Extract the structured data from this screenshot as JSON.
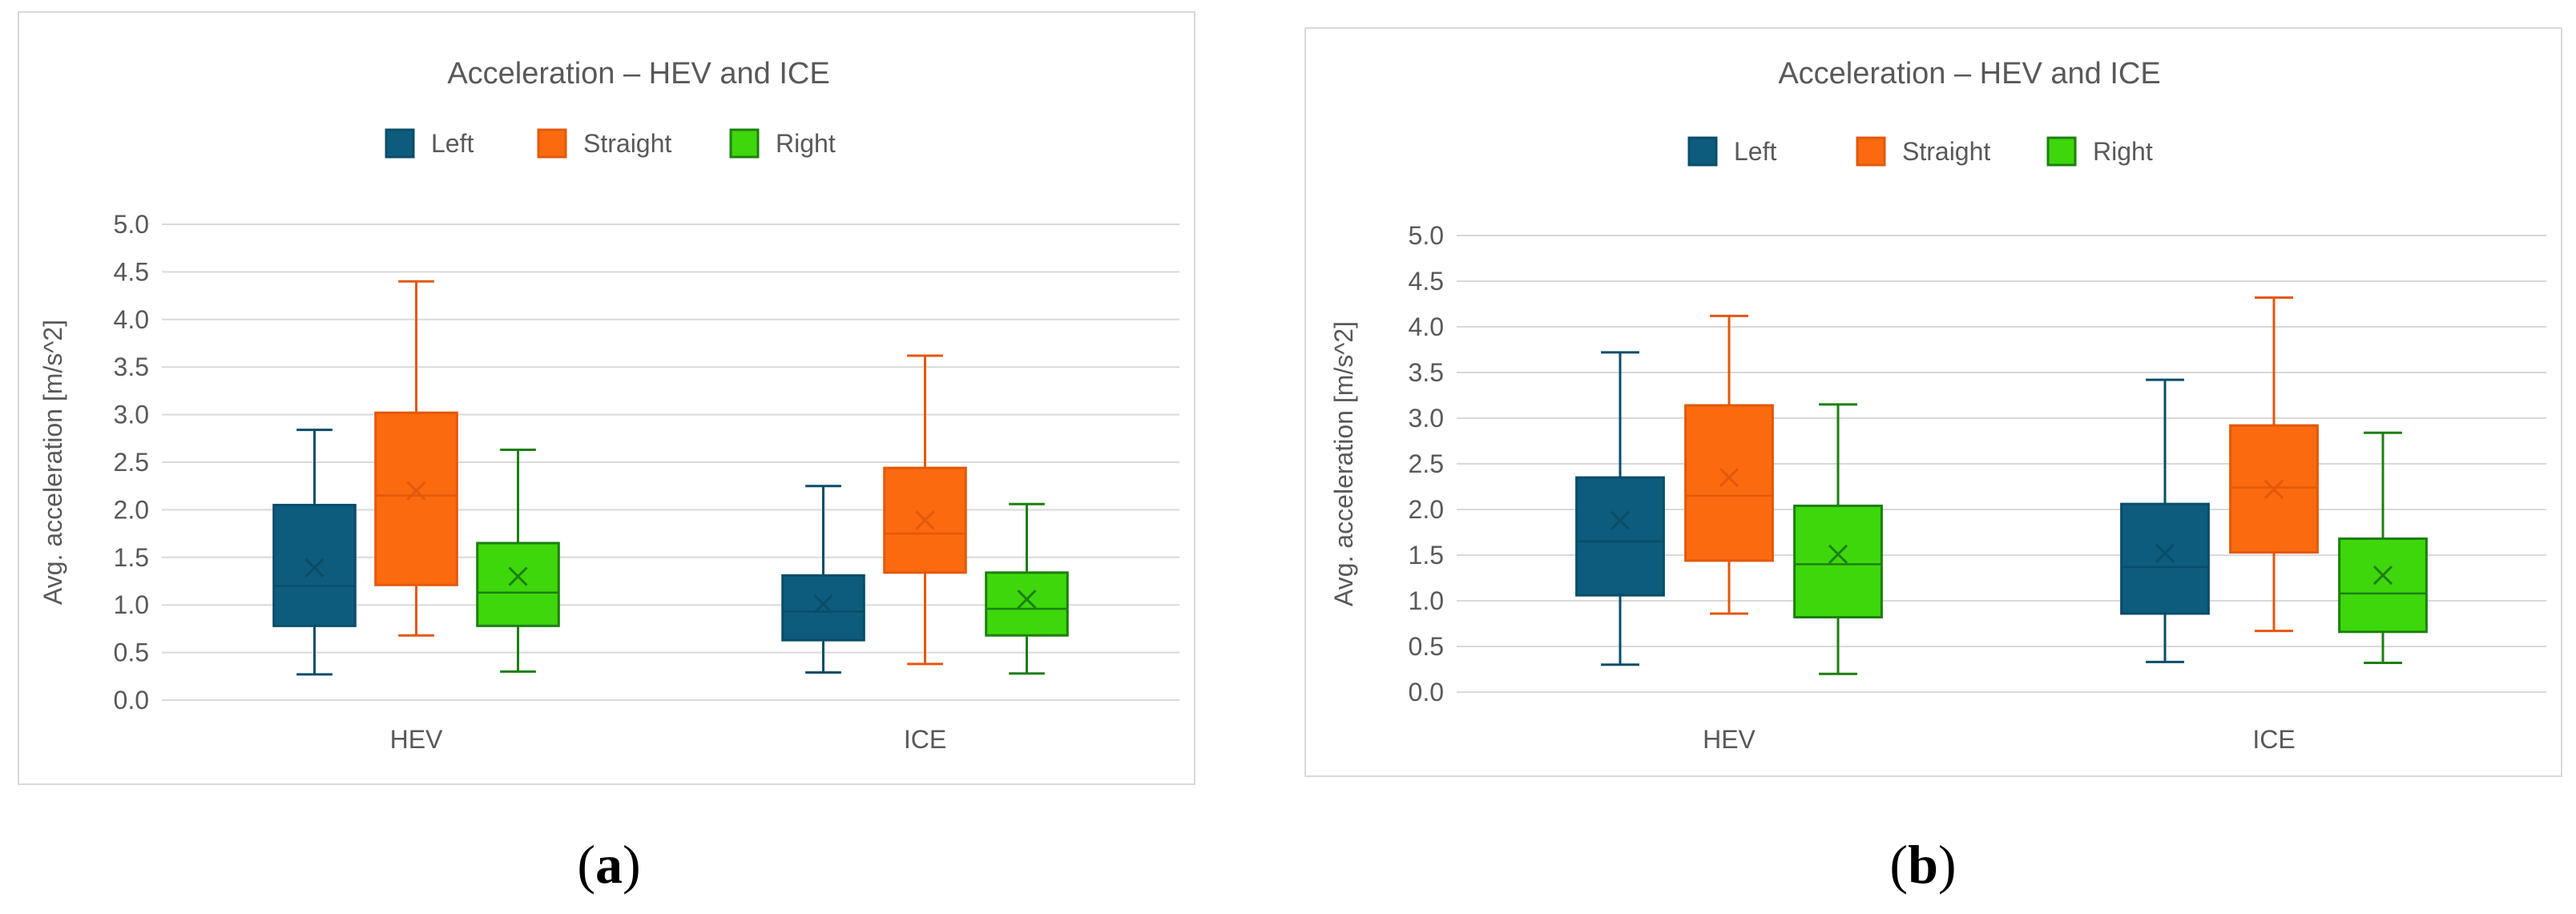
{
  "colors": {
    "Left": "#0d5c7d",
    "Straight": "#fb6a0e",
    "Right": "#3ed70b",
    "LeftStroke": "#0a4d69",
    "StraightStroke": "#e3580b",
    "RightStroke": "#1c7f10",
    "grid": "#d9d9d9",
    "text": "#595959"
  },
  "panels": [
    {
      "label_open": "(",
      "label_letter": "a",
      "label_close": ")"
    },
    {
      "label_open": "(",
      "label_letter": "b",
      "label_close": ")"
    }
  ],
  "chart_data": [
    {
      "type": "box",
      "title": "Acceleration – HEV and ICE",
      "ylabel": "Avg. acceleration  [m/s^2]",
      "xlabel": "",
      "ylim": [
        0,
        5
      ],
      "yticks": [
        "0.0",
        "0.5",
        "1.0",
        "1.5",
        "2.0",
        "2.5",
        "3.0",
        "3.5",
        "4.0",
        "4.5",
        "5.0"
      ],
      "categories": [
        "HEV",
        "ICE"
      ],
      "legend": [
        "Left",
        "Straight",
        "Right"
      ],
      "series": [
        {
          "name": "Left",
          "boxes": [
            {
              "min": 0.27,
              "q1": 0.78,
              "median": 1.2,
              "q3": 2.05,
              "max": 2.84,
              "mean": 1.39
            },
            {
              "min": 0.29,
              "q1": 0.63,
              "median": 0.93,
              "q3": 1.31,
              "max": 2.25,
              "mean": 1.01
            }
          ]
        },
        {
          "name": "Straight",
          "boxes": [
            {
              "min": 0.68,
              "q1": 1.21,
              "median": 2.15,
              "q3": 3.02,
              "max": 4.4,
              "mean": 2.2
            },
            {
              "min": 0.38,
              "q1": 1.34,
              "median": 1.75,
              "q3": 2.44,
              "max": 3.62,
              "mean": 1.89
            }
          ]
        },
        {
          "name": "Right",
          "boxes": [
            {
              "min": 0.3,
              "q1": 0.78,
              "median": 1.13,
              "q3": 1.65,
              "max": 2.63,
              "mean": 1.3
            },
            {
              "min": 0.28,
              "q1": 0.68,
              "median": 0.96,
              "q3": 1.34,
              "max": 2.06,
              "mean": 1.06
            }
          ]
        }
      ]
    },
    {
      "type": "box",
      "title": "Acceleration – HEV and ICE",
      "ylabel": "Avg. acceleration  [m/s^2]",
      "xlabel": "",
      "ylim": [
        0,
        5
      ],
      "yticks": [
        "0.0",
        "0.5",
        "1.0",
        "1.5",
        "2.0",
        "2.5",
        "3.0",
        "3.5",
        "4.0",
        "4.5",
        "5.0"
      ],
      "categories": [
        "HEV",
        "ICE"
      ],
      "legend": [
        "Left",
        "Straight",
        "Right"
      ],
      "series": [
        {
          "name": "Left",
          "boxes": [
            {
              "min": 0.3,
              "q1": 1.06,
              "median": 1.65,
              "q3": 2.35,
              "max": 3.72,
              "mean": 1.88
            },
            {
              "min": 0.33,
              "q1": 0.86,
              "median": 1.37,
              "q3": 2.06,
              "max": 3.42,
              "mean": 1.52
            }
          ]
        },
        {
          "name": "Straight",
          "boxes": [
            {
              "min": 0.86,
              "q1": 1.44,
              "median": 2.15,
              "q3": 3.14,
              "max": 4.12,
              "mean": 2.35
            },
            {
              "min": 0.67,
              "q1": 1.53,
              "median": 2.24,
              "q3": 2.92,
              "max": 4.32,
              "mean": 2.22
            }
          ]
        },
        {
          "name": "Right",
          "boxes": [
            {
              "min": 0.2,
              "q1": 0.82,
              "median": 1.4,
              "q3": 2.04,
              "max": 3.15,
              "mean": 1.51
            },
            {
              "min": 0.32,
              "q1": 0.66,
              "median": 1.08,
              "q3": 1.68,
              "max": 2.84,
              "mean": 1.28
            }
          ]
        }
      ]
    }
  ]
}
